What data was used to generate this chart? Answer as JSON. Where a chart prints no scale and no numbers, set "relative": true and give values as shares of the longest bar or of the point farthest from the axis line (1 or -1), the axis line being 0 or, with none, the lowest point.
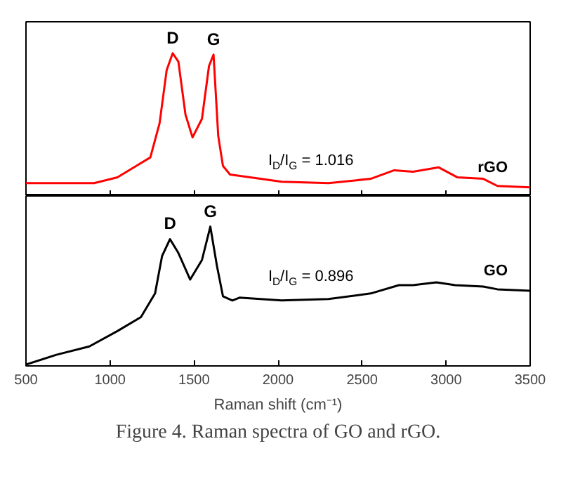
{
  "chart_data": [
    {
      "type": "line",
      "relative": true,
      "grid": false,
      "tick_labels": false,
      "marker": "none",
      "line_style": "solid",
      "xlim": [
        500,
        3500
      ],
      "xticks": [
        500,
        1000,
        1500,
        2000,
        2500,
        3000,
        3500
      ],
      "series": [
        {
          "name": "rGO",
          "color": "#ff0000",
          "x": [
            500,
            905,
            1044,
            1156,
            1240,
            1295,
            1337,
            1373,
            1407,
            1449,
            1491,
            1547,
            1589,
            1616,
            1644,
            1672,
            1714,
            2021,
            2300,
            2551,
            2691,
            2803,
            2956,
            3068,
            3221,
            3305,
            3500
          ],
          "values": [
            0.09,
            0.09,
            0.13,
            0.21,
            0.27,
            0.51,
            0.88,
            1.0,
            0.94,
            0.57,
            0.41,
            0.54,
            0.91,
            0.99,
            0.42,
            0.21,
            0.15,
            0.1,
            0.09,
            0.12,
            0.18,
            0.17,
            0.2,
            0.13,
            0.12,
            0.07,
            0.06
          ]
        }
      ],
      "annotations": [
        {
          "text": "D",
          "x": 1373,
          "y": 1.0
        },
        {
          "text": "G",
          "x": 1616,
          "y": 0.99
        },
        "I$_{D}$/I$_{G}$ = 1.016"
      ]
    },
    {
      "type": "line",
      "relative": true,
      "grid": false,
      "tick_labels": "x",
      "marker": "none",
      "line_style": "solid",
      "xlim": [
        500,
        3500
      ],
      "xticks": [
        500,
        1000,
        1500,
        2000,
        2500,
        3000,
        3500
      ],
      "xlabel": "Raman shift (cm⁻¹)",
      "series": [
        {
          "name": "GO",
          "color": "#000000",
          "x": [
            500,
            681,
            877,
            1044,
            1184,
            1268,
            1310,
            1357,
            1407,
            1477,
            1547,
            1597,
            1636,
            1672,
            1728,
            1770,
            2021,
            2300,
            2551,
            2719,
            2803,
            2942,
            3054,
            3221,
            3305,
            3500
          ],
          "values": [
            0.01,
            0.08,
            0.14,
            0.25,
            0.35,
            0.52,
            0.79,
            0.91,
            0.81,
            0.62,
            0.76,
            1.0,
            0.72,
            0.5,
            0.47,
            0.49,
            0.47,
            0.48,
            0.52,
            0.58,
            0.58,
            0.6,
            0.58,
            0.57,
            0.55,
            0.54
          ]
        }
      ],
      "annotations": [
        {
          "text": "D",
          "x": 1357,
          "y": 0.91
        },
        {
          "text": "G",
          "x": 1597,
          "y": 1.0
        },
        "I$_{D}$/I$_{G}$ = 0.896",
        "Figure 4. Raman spectra of GO and rGO."
      ]
    }
  ]
}
